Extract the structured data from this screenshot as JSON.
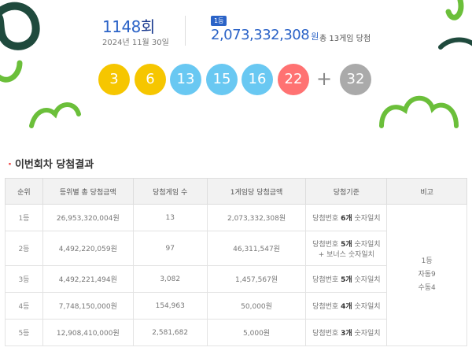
{
  "draw": {
    "number": "1148",
    "suffix": "회",
    "date": "2024년 11월 30일"
  },
  "first_prize": {
    "badge": "1등",
    "amount": "2,073,332,308",
    "unit": "원",
    "winners_text": "총 13게임 당첨"
  },
  "balls": [
    {
      "value": "3",
      "color": "#f6c600"
    },
    {
      "value": "6",
      "color": "#f6c600"
    },
    {
      "value": "13",
      "color": "#69c8f2"
    },
    {
      "value": "15",
      "color": "#69c8f2"
    },
    {
      "value": "16",
      "color": "#69c8f2"
    },
    {
      "value": "22",
      "color": "#ff7272"
    }
  ],
  "plus": "+",
  "bonus": {
    "value": "32",
    "color": "#aaaaaa"
  },
  "section": {
    "title": "이번회차 당첨결과"
  },
  "table": {
    "headers": [
      "순위",
      "등위별 총 당첨금액",
      "당첨게임 수",
      "1게임당 당첨금액",
      "당첨기준",
      "비고"
    ],
    "rows": [
      {
        "rank": "1등",
        "total": "26,953,320,004원",
        "games": "13",
        "per_game": "2,073,332,308원",
        "crit_pre": "당첨번호 ",
        "crit_bold": "6개",
        "crit_post": " 숫자일치",
        "crit_line2": ""
      },
      {
        "rank": "2등",
        "total": "4,492,220,059원",
        "games": "97",
        "per_game": "46,311,547원",
        "crit_pre": "당첨번호 ",
        "crit_bold": "5개",
        "crit_post": " 숫자일치",
        "crit_line2": "+ 보너스 숫자일치"
      },
      {
        "rank": "3등",
        "total": "4,492,221,494원",
        "games": "3,082",
        "per_game": "1,457,567원",
        "crit_pre": "당첨번호 ",
        "crit_bold": "5개",
        "crit_post": " 숫자일치",
        "crit_line2": ""
      },
      {
        "rank": "4등",
        "total": "7,748,150,000원",
        "games": "154,963",
        "per_game": "50,000원",
        "crit_pre": "당첨번호 ",
        "crit_bold": "4개",
        "crit_post": " 숫자일치",
        "crit_line2": ""
      },
      {
        "rank": "5등",
        "total": "12,908,410,000원",
        "games": "2,581,682",
        "per_game": "5,000원",
        "crit_pre": "당첨번호 ",
        "crit_bold": "3개",
        "crit_post": " 숫자일치",
        "crit_line2": ""
      }
    ],
    "remark": {
      "line1": "1등",
      "line2": "자동9",
      "line3": "수동4"
    }
  },
  "colors": {
    "accent": "#2b63c7",
    "deco_dark": "#1f4a3d",
    "deco_green": "#6bbf3a"
  }
}
